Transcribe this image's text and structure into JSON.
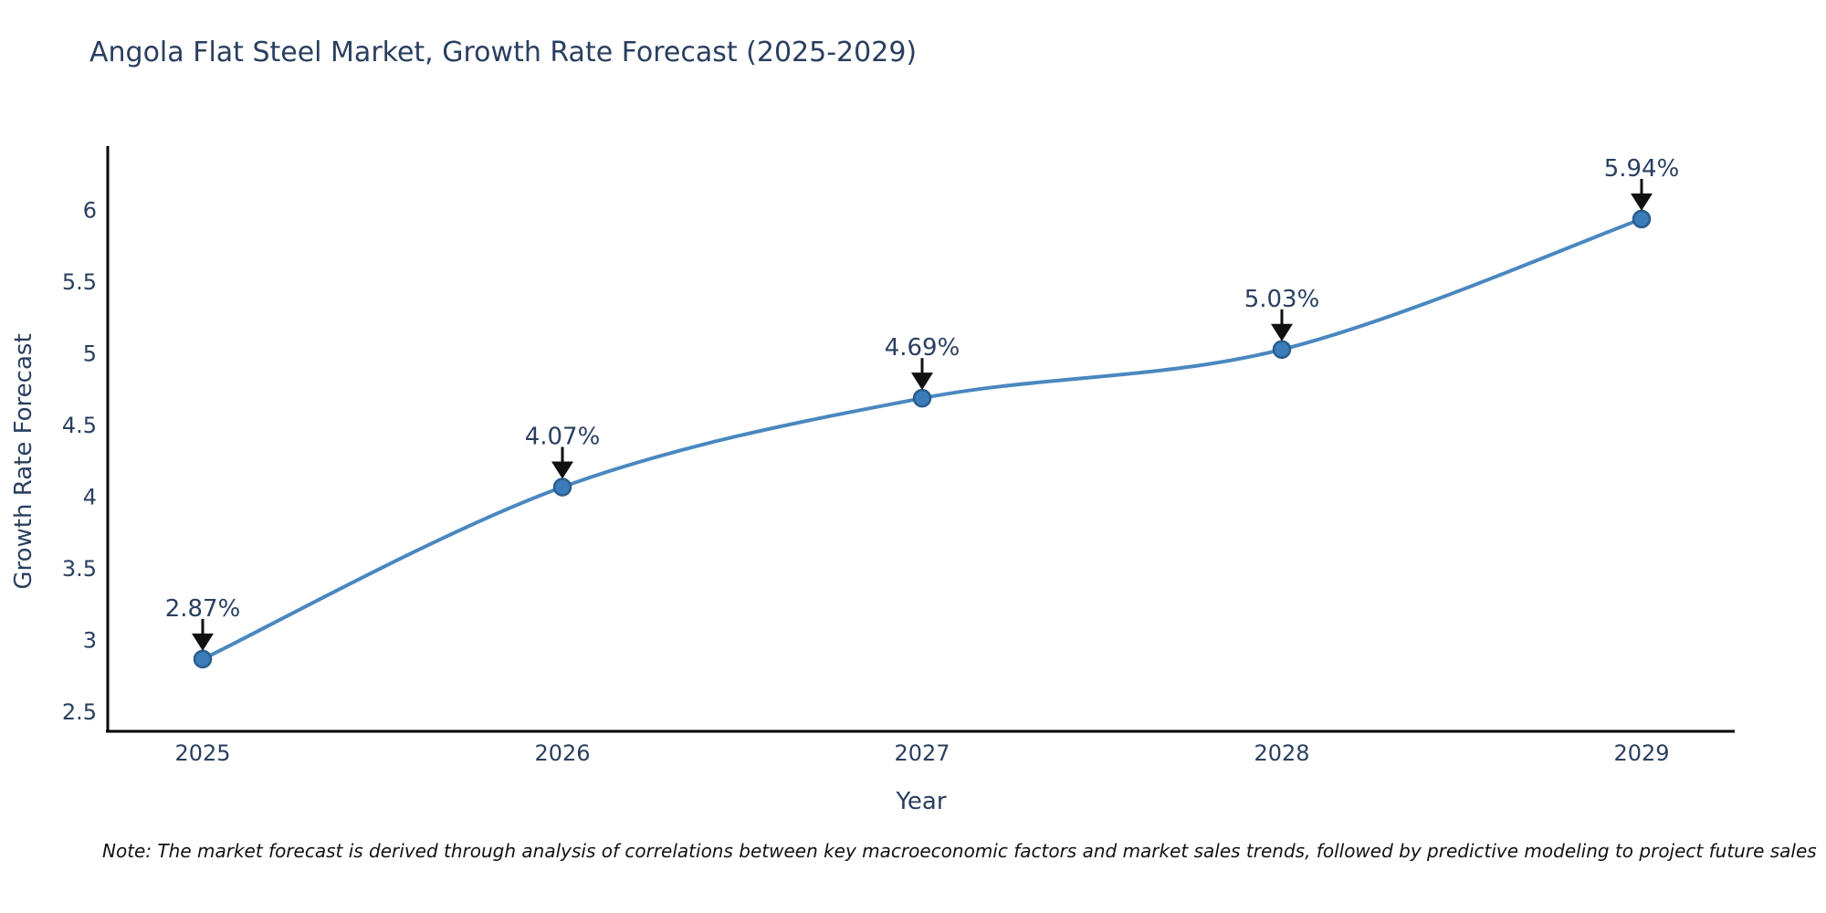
{
  "title": {
    "text": "Angola Flat Steel Market, Growth Rate Forecast (2025-2029)"
  },
  "note": {
    "text": "Note: The market forecast is derived through analysis of correlations between key macroeconomic factors and market sales trends, followed by predictive modeling to project future sales"
  },
  "chart_data": {
    "type": "line",
    "title": "Angola Flat Steel Market, Growth Rate Forecast (2025-2029)",
    "xlabel": "Year",
    "ylabel": "Growth Rate Forecast",
    "x": [
      2025,
      2026,
      2027,
      2028,
      2029
    ],
    "values": [
      2.87,
      4.07,
      4.69,
      5.03,
      5.94
    ],
    "point_labels": [
      "2.87%",
      "4.07%",
      "4.69%",
      "5.03%",
      "5.94%"
    ],
    "yticks": [
      2.5,
      3,
      3.5,
      4,
      4.5,
      5,
      5.5,
      6
    ],
    "ylim": [
      2.36,
      6.45
    ],
    "grid": false,
    "legend": "none",
    "line_shape": "spline",
    "colors": {
      "line": "#4a87c0",
      "marker_fill": "#3c7cba",
      "marker_stroke": "#2a5d8c",
      "axis": "#000000",
      "text": "#2a3f5f",
      "arrow": "#111111"
    }
  }
}
